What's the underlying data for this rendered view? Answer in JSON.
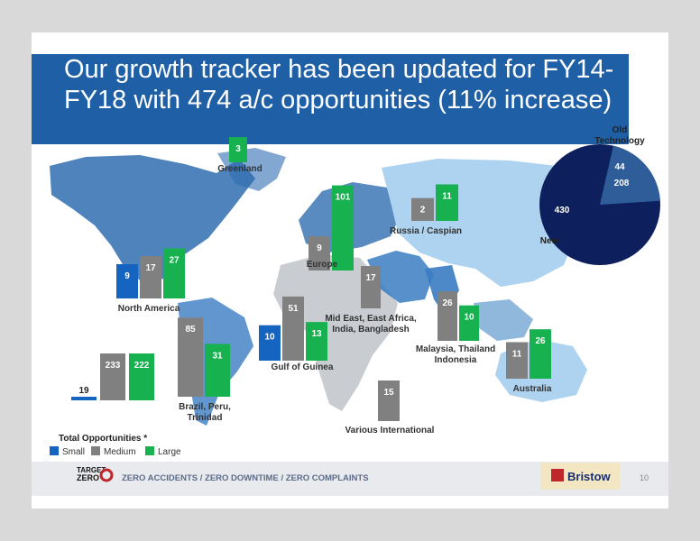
{
  "slide": {
    "title": "Our growth tracker has been updated for FY14-FY18 with 474 a/c opportunities (11% increase)",
    "page_number": "10",
    "footer_slogan": "ZERO ACCIDENTS / ZERO DOWNTIME / ZERO COMPLAINTS",
    "target_zero": [
      "TARGET",
      "ZERO"
    ],
    "brand": "Bristow"
  },
  "colors": {
    "small": "#1565c0",
    "medium": "#808080",
    "large": "#17b14f",
    "pie_new": "#0d1f5c",
    "pie_old": "#2e5d9a",
    "title_bar": "#1f5fa6"
  },
  "chart_data": [
    {
      "type": "bar",
      "series_names": [
        "Small",
        "Medium",
        "Large"
      ],
      "legend": {
        "title": "Total Opportunities *",
        "items": [
          "Small",
          "Medium",
          "Large"
        ],
        "position": "bottom-left"
      },
      "regions": [
        {
          "name": "Greenland",
          "small": null,
          "medium": null,
          "large": 3
        },
        {
          "name": "North America",
          "small": 9,
          "medium": 17,
          "large": 27
        },
        {
          "name": "Europe",
          "small": null,
          "medium": 9,
          "large": 101
        },
        {
          "name": "Russia / Caspian",
          "small": null,
          "medium": 2,
          "large": 11
        },
        {
          "name": "Mid East, East Africa, India, Bangladesh",
          "small": null,
          "medium": 17,
          "large": null
        },
        {
          "name": "Gulf of Guinea",
          "small": 10,
          "medium": 51,
          "large": 13
        },
        {
          "name": "Brazil, Peru, Trinidad",
          "small": null,
          "medium": 85,
          "large": 31
        },
        {
          "name": "Malaysia, Thailand Indonesia",
          "small": null,
          "medium": 26,
          "large": 10
        },
        {
          "name": "Australia",
          "small": null,
          "medium": 11,
          "large": 26
        },
        {
          "name": "Various International",
          "small": null,
          "medium": 15,
          "large": null
        },
        {
          "name": "",
          "small": 19,
          "medium": 233,
          "large": 222
        }
      ]
    },
    {
      "type": "pie",
      "slices": [
        {
          "label": "New",
          "value": 430
        },
        {
          "label": "Old Technology",
          "value": 44
        }
      ],
      "annotations": [
        "208"
      ]
    }
  ]
}
